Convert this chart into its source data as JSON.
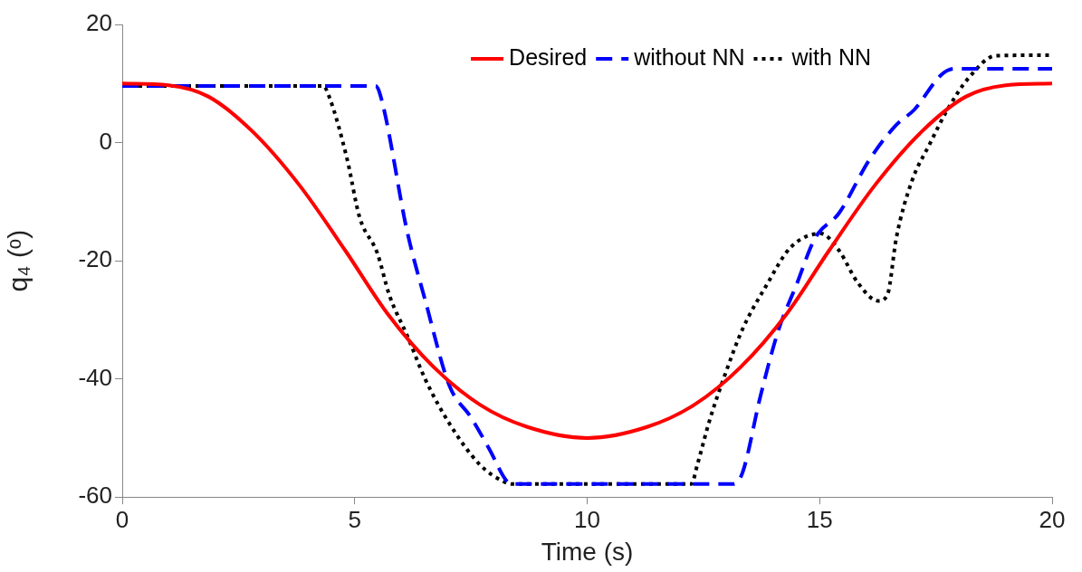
{
  "chart_data": {
    "type": "line",
    "xlabel": "Time (s)",
    "ylabel": "q₄ (ᵒ)",
    "xlim": [
      0,
      20
    ],
    "ylim": [
      -60,
      20
    ],
    "xticks": [
      0,
      5,
      10,
      15,
      20
    ],
    "yticks": [
      -60,
      -40,
      -20,
      0,
      20
    ],
    "grid": false,
    "legend": "top right",
    "marker": "none",
    "series": [
      {
        "name": "Desired",
        "color": "#ff0000",
        "line_style": "solid",
        "x": [
          0,
          1,
          1.85,
          2.8,
          3.8,
          4.8,
          5.7,
          6.7,
          7.7,
          8.7,
          10,
          11.3,
          12.3,
          13.3,
          14.3,
          15.2,
          16.2,
          17.2,
          18.15,
          19,
          20
        ],
        "values": [
          10,
          9.7,
          7.8,
          1.9,
          -7.1,
          -18.3,
          -28.9,
          -38,
          -44.4,
          -48.1,
          -50,
          -48.1,
          -44.4,
          -38,
          -28.9,
          -18.3,
          -7.1,
          1.9,
          7.8,
          9.7,
          10
        ]
      },
      {
        "name": "without NN",
        "color": "#0000ff",
        "line_style": "dashed",
        "x": [
          0,
          5.45,
          5.58,
          6.13,
          6.52,
          7.04,
          7.5,
          7.89,
          8.28,
          8.4,
          13.15,
          13.34,
          13.73,
          14.12,
          14.5,
          14.9,
          15.42,
          16.07,
          16.65,
          17.04,
          17.62,
          17.9,
          20
        ],
        "values": [
          9.6,
          9.6,
          7.2,
          -15.1,
          -26.8,
          -41.2,
          -46.5,
          -51.8,
          -57.4,
          -57.8,
          -57.8,
          -55.9,
          -42.8,
          -31.6,
          -24.1,
          -16.2,
          -11.9,
          -2.9,
          3,
          5.6,
          11.5,
          12.5,
          12.5
        ]
      },
      {
        "name": "with NN",
        "color": "#000000",
        "line_style": "dotted",
        "x": [
          0,
          4.32,
          4.45,
          4.84,
          5.1,
          5.49,
          5.74,
          6.13,
          6.52,
          7.04,
          7.69,
          8.21,
          8.4,
          12.24,
          12.37,
          12.63,
          12.95,
          13.34,
          13.86,
          14.38,
          15.03,
          15.42,
          15.81,
          16.26,
          16.46,
          16.65,
          16.98,
          17.37,
          17.75,
          18.21,
          18.79,
          20
        ],
        "values": [
          9.6,
          9.6,
          7.8,
          -2.9,
          -12.5,
          -18.8,
          -25.7,
          -32.7,
          -40.1,
          -47.6,
          -54.5,
          -57.4,
          -57.8,
          -57.8,
          -54.5,
          -47.1,
          -39.6,
          -31.6,
          -24.1,
          -17.7,
          -15.4,
          -18.3,
          -23.6,
          -26.8,
          -25.7,
          -16.1,
          -6.6,
          -0.2,
          5.6,
          11,
          14.7,
          14.8
        ]
      }
    ]
  }
}
